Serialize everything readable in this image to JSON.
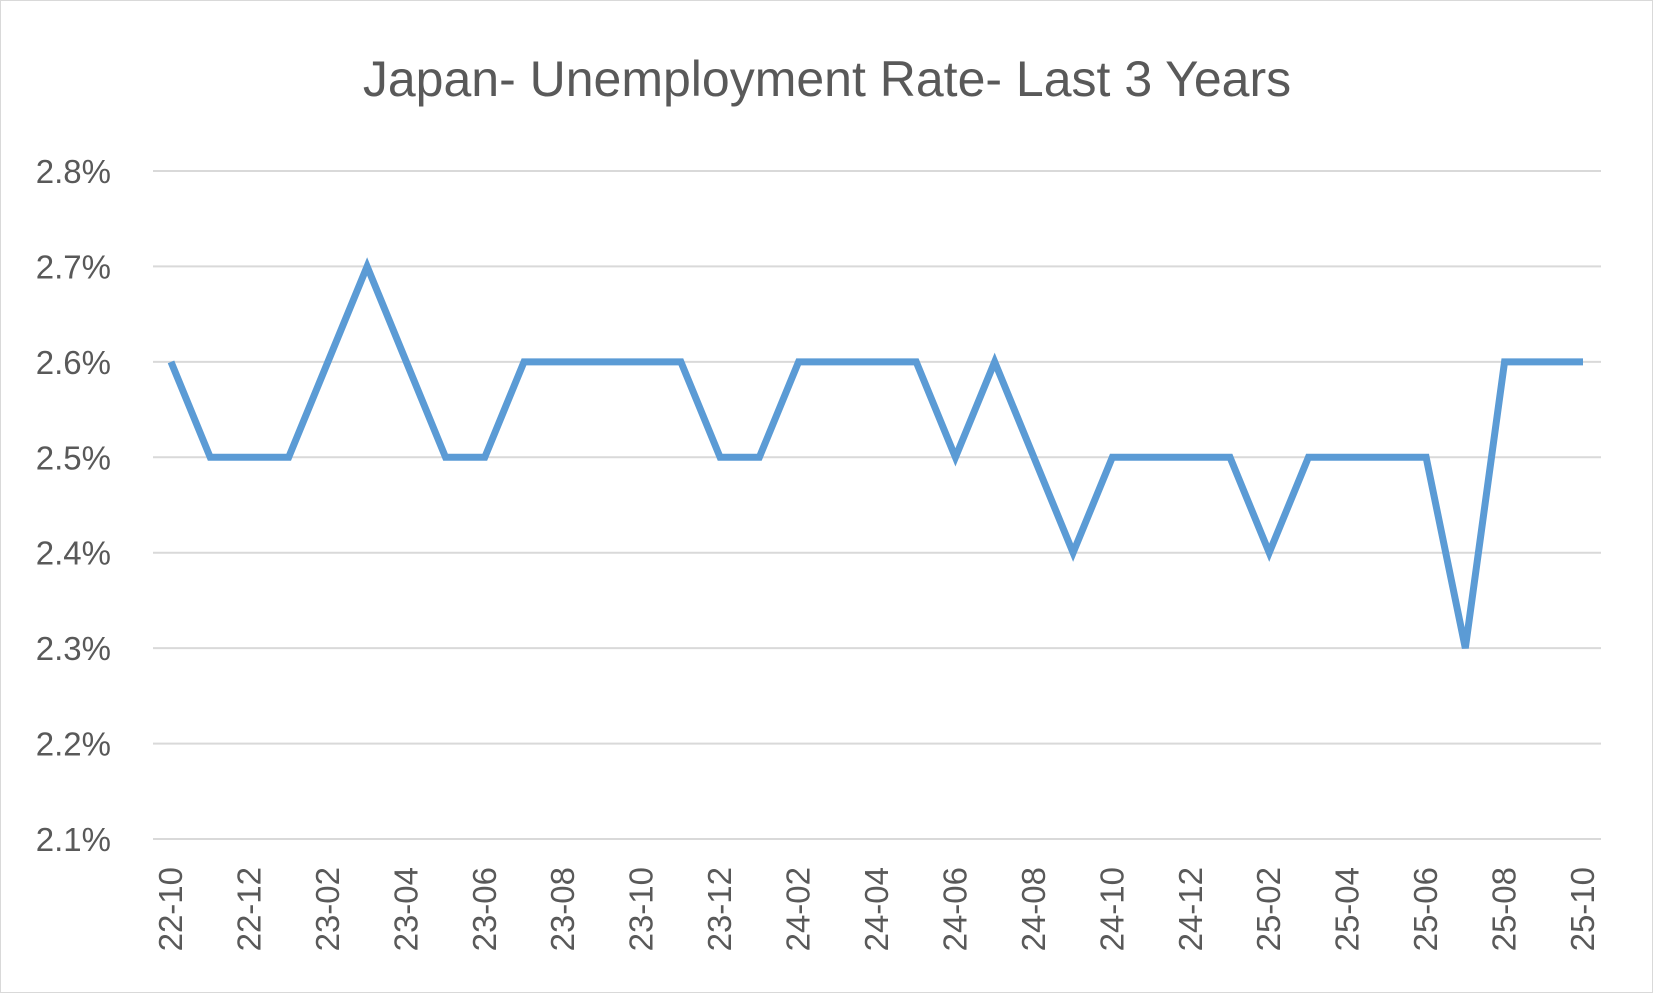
{
  "chart_data": {
    "type": "line",
    "title": "Japan- Unemployment Rate- Last 3 Years",
    "xlabel": "",
    "ylabel": "",
    "x": [
      "22-10",
      "22-11",
      "22-12",
      "23-01",
      "23-02",
      "23-03",
      "23-04",
      "23-05",
      "23-06",
      "23-07",
      "23-08",
      "23-09",
      "23-10",
      "23-11",
      "23-12",
      "24-01",
      "24-02",
      "24-03",
      "24-04",
      "24-05",
      "24-06",
      "24-07",
      "24-08",
      "24-09",
      "24-10",
      "24-11",
      "24-12",
      "25-01",
      "25-02",
      "25-03",
      "25-04",
      "25-05",
      "25-06",
      "25-07",
      "25-08",
      "25-09",
      "25-10"
    ],
    "x_tick_labels": [
      "22-10",
      "22-12",
      "23-02",
      "23-04",
      "23-06",
      "23-08",
      "23-10",
      "23-12",
      "24-02",
      "24-04",
      "24-06",
      "24-08",
      "24-10",
      "24-12",
      "25-02",
      "25-04",
      "25-06",
      "25-08",
      "25-10"
    ],
    "series": [
      {
        "values": [
          2.6,
          2.5,
          2.5,
          2.5,
          2.6,
          2.7,
          2.6,
          2.5,
          2.5,
          2.6,
          2.6,
          2.6,
          2.6,
          2.6,
          2.5,
          2.5,
          2.6,
          2.6,
          2.6,
          2.6,
          2.5,
          2.6,
          2.5,
          2.4,
          2.5,
          2.5,
          2.5,
          2.5,
          2.4,
          2.5,
          2.5,
          2.5,
          2.5,
          2.3,
          2.6,
          2.6,
          2.6
        ],
        "color": "#5b9bd5"
      }
    ],
    "ylim": [
      2.1,
      2.8
    ],
    "y_ticks": [
      2.1,
      2.2,
      2.3,
      2.4,
      2.5,
      2.6,
      2.7,
      2.8
    ],
    "y_tick_labels": [
      "2.1%",
      "2.2%",
      "2.3%",
      "2.4%",
      "2.5%",
      "2.6%",
      "2.7%",
      "2.8%"
    ],
    "grid": true,
    "legend": "none"
  }
}
